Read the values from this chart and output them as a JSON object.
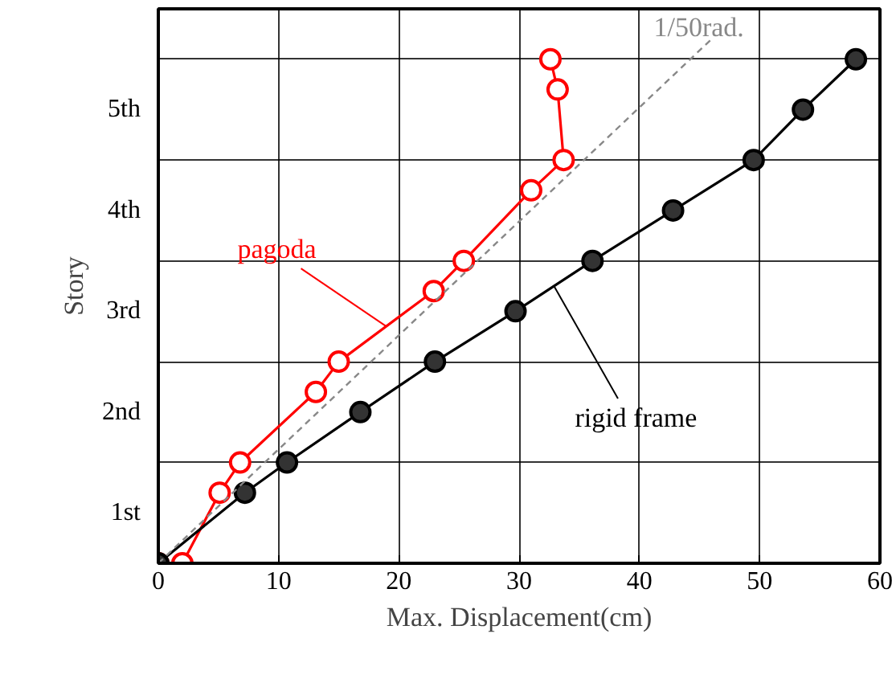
{
  "chart_data": {
    "type": "line",
    "xlabel": "Max. Displacement(cm)",
    "ylabel": "Story",
    "xlim": [
      0,
      60
    ],
    "xticks": [
      0,
      10,
      20,
      30,
      40,
      50,
      60
    ],
    "ylim": [
      0,
      5.5
    ],
    "yticks": [
      {
        "value": 0,
        "label": null
      },
      {
        "value": 0.5,
        "label": "1st"
      },
      {
        "value": 1,
        "label": null
      },
      {
        "value": 1.5,
        "label": "2nd"
      },
      {
        "value": 2,
        "label": null
      },
      {
        "value": 2.5,
        "label": "3rd"
      },
      {
        "value": 3,
        "label": null
      },
      {
        "value": 3.5,
        "label": "4th"
      },
      {
        "value": 4,
        "label": null
      },
      {
        "value": 4.5,
        "label": "5th"
      },
      {
        "value": 5,
        "label": null
      }
    ],
    "grid": true,
    "legend": false,
    "series": [
      {
        "name": "pagoda",
        "color": "#ff0000",
        "marker": "circle",
        "line_style": "solid",
        "x": [
          0,
          2.0,
          5.1,
          6.8,
          13.1,
          15.0,
          22.9,
          25.4,
          31.0,
          33.7,
          33.2,
          32.6
        ],
        "values": [
          0,
          0,
          0.7,
          1,
          1.7,
          2,
          2.7,
          3,
          3.7,
          4,
          4.7,
          5
        ]
      },
      {
        "name": "rigid frame",
        "color": "#000000",
        "marker": "circle",
        "line_style": "solid",
        "x": [
          0,
          7.2,
          10.7,
          16.8,
          23.0,
          29.7,
          36.1,
          42.8,
          49.5,
          53.6,
          58.0
        ],
        "values": [
          0,
          0.7,
          1,
          1.5,
          2,
          2.5,
          3,
          3.5,
          4,
          4.5,
          5
        ]
      },
      {
        "name": "1/50rad.",
        "color": "#888888",
        "marker": "none",
        "line_style": "dashed",
        "x": [
          0,
          46
        ],
        "values": [
          0,
          5.2
        ]
      }
    ]
  }
}
